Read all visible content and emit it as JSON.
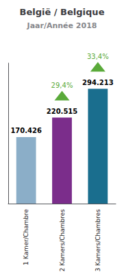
{
  "chart_data": {
    "type": "bar",
    "title": "België / Belgique",
    "subtitle": "Jaar/Année 2018",
    "categories": [
      "1 Kamer/Chambre",
      "2 Kamers/Chambres",
      "3 Kamers/Chambres"
    ],
    "values": [
      170426,
      220515,
      294213
    ],
    "value_labels": [
      "170.426",
      "220.515",
      "294.213"
    ],
    "colors": [
      "#8baec8",
      "#7b2d8b",
      "#1a6e8e"
    ],
    "ylim": [
      0,
      360000
    ],
    "data_labels": true,
    "tick_labels": "x",
    "grid": false,
    "annotations": [
      {
        "category": "2 Kamers/Chambres",
        "text": "29,4%",
        "marker": "triangle",
        "color": "#5aaa3a"
      },
      {
        "category": "3 Kamers/Chambres",
        "text": "33,4%",
        "marker": "triangle",
        "color": "#5aaa3a"
      }
    ]
  }
}
